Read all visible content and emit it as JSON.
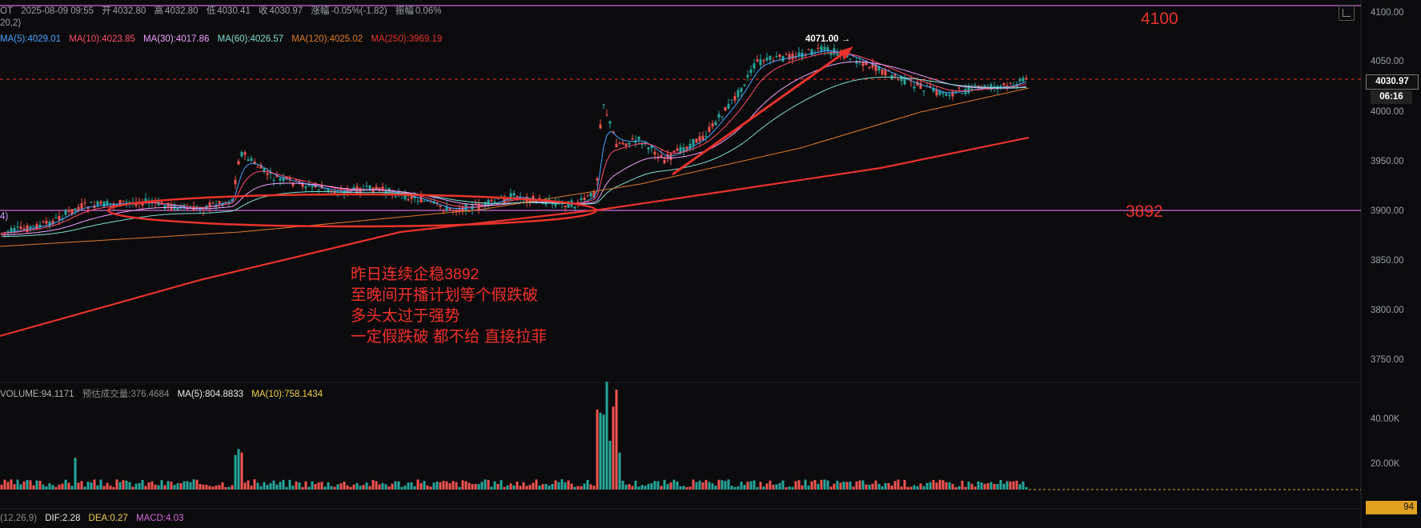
{
  "header": {
    "pair_cut": "OT",
    "datetime": "2025-08-09 09:55",
    "open_label": "开",
    "open": "4032.80",
    "high_label": "高",
    "high": "4032.80",
    "low_label": "低",
    "low": "4030.41",
    "close_label": "收",
    "close": "4030.97",
    "change_label": "涨幅",
    "change": "-0.05%(-1.82)",
    "amp_label": "振幅",
    "amp": "0.06%"
  },
  "bollinger_cut": "20,2)",
  "bollinger_value_cut": "4)",
  "ma": {
    "ma5": "MA(5):4029.01",
    "ma10": "MA(10):4023.85",
    "ma30": "MA(30):4017.86",
    "ma60": "MA(60):4026.57",
    "ma120": "MA(120):4025.02",
    "ma250": "MA(250):3969.19"
  },
  "volume_row": {
    "volume": "VOLUME:94.1171",
    "estimated": "预估成交量:376.4684",
    "vma5": "MA(5):804.8833",
    "vma10": "MA(10):758.1434"
  },
  "macd_row": {
    "label_cut": "(12,26,9)",
    "dif": "DIF:2.28",
    "dea": "DEA:0.27",
    "macd": "MACD:4.03"
  },
  "price_axis": [
    "4100.00",
    "4050.00",
    "4000.00",
    "3950.00",
    "3900.00",
    "3850.00",
    "3800.00",
    "3750.00"
  ],
  "volume_axis": [
    "40.00K",
    "20.00K"
  ],
  "current_price": "4030.97",
  "countdown": "06:16",
  "current_volume": "94",
  "high_marker": "4071.00",
  "levels": {
    "upper": "4100",
    "lower": "3892"
  },
  "annotation": [
    "昨日连续企稳3892",
    "至晚间开播计划等个假跌破",
    "多头太过于强势",
    "一定假跌破 都不给 直接拉菲"
  ],
  "colors": {
    "background": "#0b0b0d",
    "up": "#26a69a",
    "down": "#ef5350",
    "ma5": "#4aa3ff",
    "ma10": "#ff4d6d",
    "ma30": "#f0a0ff",
    "ma60": "#7fe0d0",
    "ma120": "#e07a2a",
    "ma250": "#e8322c",
    "annotation": "#f0302a",
    "level_line": "#d36ad6"
  }
}
